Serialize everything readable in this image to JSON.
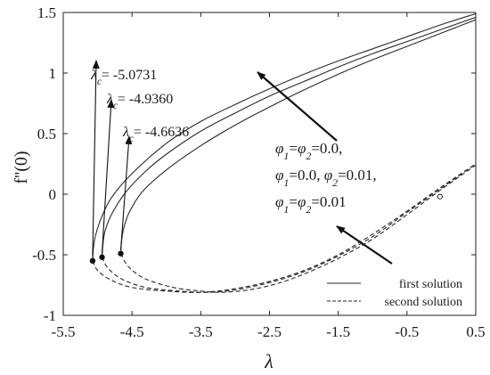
{
  "chart_data": {
    "type": "line",
    "xlabel": "λ",
    "ylabel": "f''(0)",
    "xlim": [
      -5.5,
      0.5
    ],
    "ylim": [
      -1,
      1.5
    ],
    "xticks": [
      -5.5,
      -4.5,
      -3.5,
      -2.5,
      -1.5,
      -0.5,
      0.5
    ],
    "xtick_labels": [
      "-5.5",
      "-4.5",
      "-3.5",
      "-2.5",
      "-1.5",
      "-0.5",
      "0.5"
    ],
    "yticks": [
      -1,
      -0.5,
      0,
      0.5,
      1,
      1.5
    ],
    "ytick_labels": [
      "-1",
      "-0.5",
      "0",
      "0.5",
      "1",
      "1.5"
    ],
    "grid": false,
    "series": [
      {
        "critical_lambda": -5.0731,
        "critical_f": -0.55,
        "first_solution": [
          [
            -5.0731,
            -0.55
          ],
          [
            -5.06,
            -0.44
          ],
          [
            -5.03,
            -0.34
          ],
          [
            -4.95,
            -0.2
          ],
          [
            -4.8,
            -0.03
          ],
          [
            -4.5,
            0.17
          ],
          [
            -4.0,
            0.42
          ],
          [
            -3.5,
            0.6
          ],
          [
            -3.0,
            0.74
          ],
          [
            -2.5,
            0.87
          ],
          [
            -2.0,
            0.99
          ],
          [
            -1.5,
            1.1
          ],
          [
            -1.0,
            1.2
          ],
          [
            -0.5,
            1.3
          ],
          [
            0.0,
            1.4
          ],
          [
            0.5,
            1.49
          ]
        ],
        "second_solution": [
          [
            -5.0731,
            -0.55
          ],
          [
            -5.0,
            -0.63
          ],
          [
            -4.8,
            -0.71
          ],
          [
            -4.5,
            -0.77
          ],
          [
            -4.0,
            -0.8
          ],
          [
            -3.5,
            -0.81
          ],
          [
            -3.0,
            -0.78
          ],
          [
            -2.5,
            -0.72
          ],
          [
            -2.0,
            -0.63
          ],
          [
            -1.5,
            -0.5
          ],
          [
            -1.0,
            -0.33
          ],
          [
            -0.5,
            -0.14
          ],
          [
            0.0,
            0.06
          ],
          [
            0.5,
            0.25
          ]
        ]
      },
      {
        "critical_lambda": -4.936,
        "critical_f": -0.52,
        "first_solution": [
          [
            -4.936,
            -0.52
          ],
          [
            -4.92,
            -0.4
          ],
          [
            -4.89,
            -0.3
          ],
          [
            -4.8,
            -0.17
          ],
          [
            -4.6,
            0.01
          ],
          [
            -4.3,
            0.19
          ],
          [
            -4.0,
            0.33
          ],
          [
            -3.5,
            0.52
          ],
          [
            -3.0,
            0.67
          ],
          [
            -2.5,
            0.81
          ],
          [
            -2.0,
            0.93
          ],
          [
            -1.5,
            1.05
          ],
          [
            -1.0,
            1.16
          ],
          [
            -0.5,
            1.26
          ],
          [
            0.0,
            1.36
          ],
          [
            0.5,
            1.46
          ]
        ],
        "second_solution": [
          [
            -4.936,
            -0.52
          ],
          [
            -4.85,
            -0.61
          ],
          [
            -4.65,
            -0.7
          ],
          [
            -4.3,
            -0.77
          ],
          [
            -3.8,
            -0.8
          ],
          [
            -3.4,
            -0.81
          ],
          [
            -3.0,
            -0.79
          ],
          [
            -2.5,
            -0.73
          ],
          [
            -2.0,
            -0.64
          ],
          [
            -1.5,
            -0.51
          ],
          [
            -1.0,
            -0.35
          ],
          [
            -0.5,
            -0.15
          ],
          [
            0.0,
            0.05
          ],
          [
            0.5,
            0.25
          ]
        ]
      },
      {
        "critical_lambda": -4.6636,
        "critical_f": -0.49,
        "first_solution": [
          [
            -4.6636,
            -0.49
          ],
          [
            -4.65,
            -0.38
          ],
          [
            -4.62,
            -0.28
          ],
          [
            -4.54,
            -0.15
          ],
          [
            -4.35,
            0.02
          ],
          [
            -4.0,
            0.2
          ],
          [
            -3.5,
            0.4
          ],
          [
            -3.0,
            0.57
          ],
          [
            -2.5,
            0.72
          ],
          [
            -2.0,
            0.86
          ],
          [
            -1.5,
            0.99
          ],
          [
            -1.0,
            1.11
          ],
          [
            -0.5,
            1.22
          ],
          [
            0.0,
            1.33
          ],
          [
            0.5,
            1.44
          ]
        ],
        "second_solution": [
          [
            -4.6636,
            -0.49
          ],
          [
            -4.55,
            -0.6
          ],
          [
            -4.3,
            -0.7
          ],
          [
            -3.9,
            -0.77
          ],
          [
            -3.5,
            -0.8
          ],
          [
            -3.2,
            -0.81
          ],
          [
            -2.8,
            -0.79
          ],
          [
            -2.4,
            -0.74
          ],
          [
            -2.0,
            -0.66
          ],
          [
            -1.5,
            -0.53
          ],
          [
            -1.0,
            -0.37
          ],
          [
            -0.5,
            -0.17
          ],
          [
            0.0,
            0.04
          ],
          [
            0.5,
            0.24
          ]
        ]
      }
    ],
    "annotations": {
      "critical_labels": [
        {
          "prefix": "λ",
          "subscript": "c",
          "value": "= -5.0731"
        },
        {
          "prefix": "λ",
          "subscript": "c",
          "value": "= -4.9360"
        },
        {
          "prefix": "λ",
          "subscript": "c",
          "value": "= -4.6636"
        }
      ],
      "phi_lines": [
        {
          "parts": [
            [
              "φ",
              "1"
            ],
            [
              "=φ",
              "2"
            ],
            [
              "=0.0,",
              ""
            ]
          ]
        },
        {
          "parts": [
            [
              "φ",
              "1"
            ],
            [
              "=0.0, φ",
              "2"
            ],
            [
              "=0.01,",
              ""
            ]
          ]
        },
        {
          "parts": [
            [
              "φ",
              "1"
            ],
            [
              "=φ",
              "2"
            ],
            [
              "=0.01",
              ""
            ]
          ]
        }
      ],
      "open_marker": [
        -0.02,
        -0.02
      ]
    },
    "legend": {
      "position": "bottom-right",
      "entries": [
        {
          "label": "first solution",
          "style": "solid"
        },
        {
          "label": "second solution",
          "style": "dashed"
        }
      ]
    }
  }
}
